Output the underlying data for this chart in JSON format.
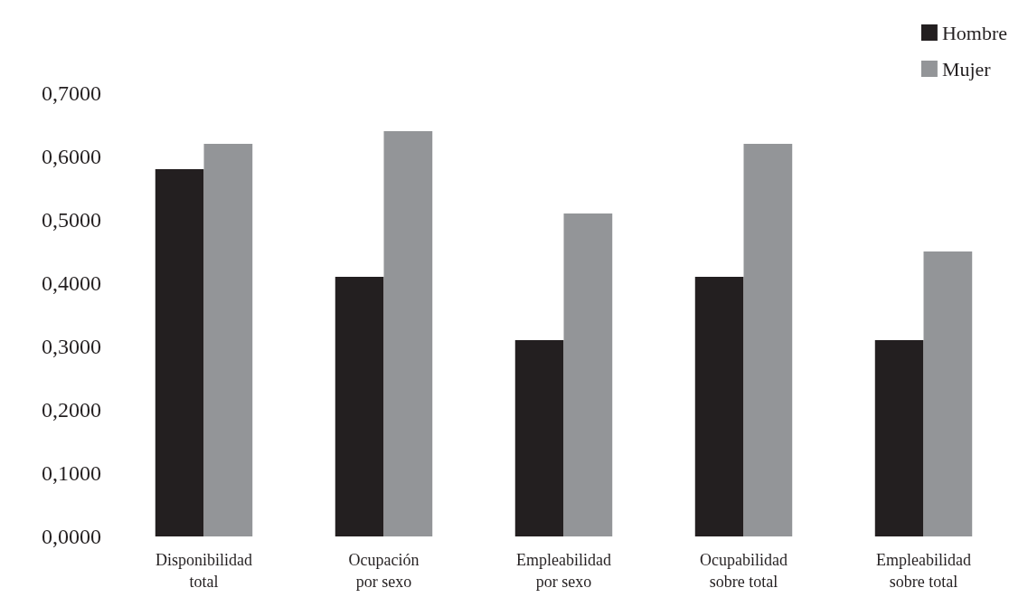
{
  "chart_data": {
    "type": "bar",
    "categories": [
      "Disponibilidad total",
      "Ocupación por sexo",
      "Empleabilidad por sexo",
      "Ocupabilidad sobre total",
      "Empleabilidad sobre total"
    ],
    "series": [
      {
        "name": "Hombre",
        "color": "#231f20",
        "values": [
          0.58,
          0.41,
          0.31,
          0.41,
          0.31
        ]
      },
      {
        "name": "Mujer",
        "color": "#939598",
        "values": [
          0.62,
          0.64,
          0.51,
          0.62,
          0.45
        ]
      }
    ],
    "ylim": [
      0,
      0.7
    ],
    "yticks": [
      {
        "value": 0,
        "label": "0,0000"
      },
      {
        "value": 0.1,
        "label": "0,1000"
      },
      {
        "value": 0.2,
        "label": "0,2000"
      },
      {
        "value": 0.3,
        "label": "0,3000"
      },
      {
        "value": 0.4,
        "label": "0,4000"
      },
      {
        "value": 0.5,
        "label": "0,5000"
      },
      {
        "value": 0.6,
        "label": "0,6000"
      },
      {
        "value": 0.7,
        "label": "0,7000"
      }
    ],
    "grid": false,
    "legend": "top right",
    "marker": "square"
  }
}
